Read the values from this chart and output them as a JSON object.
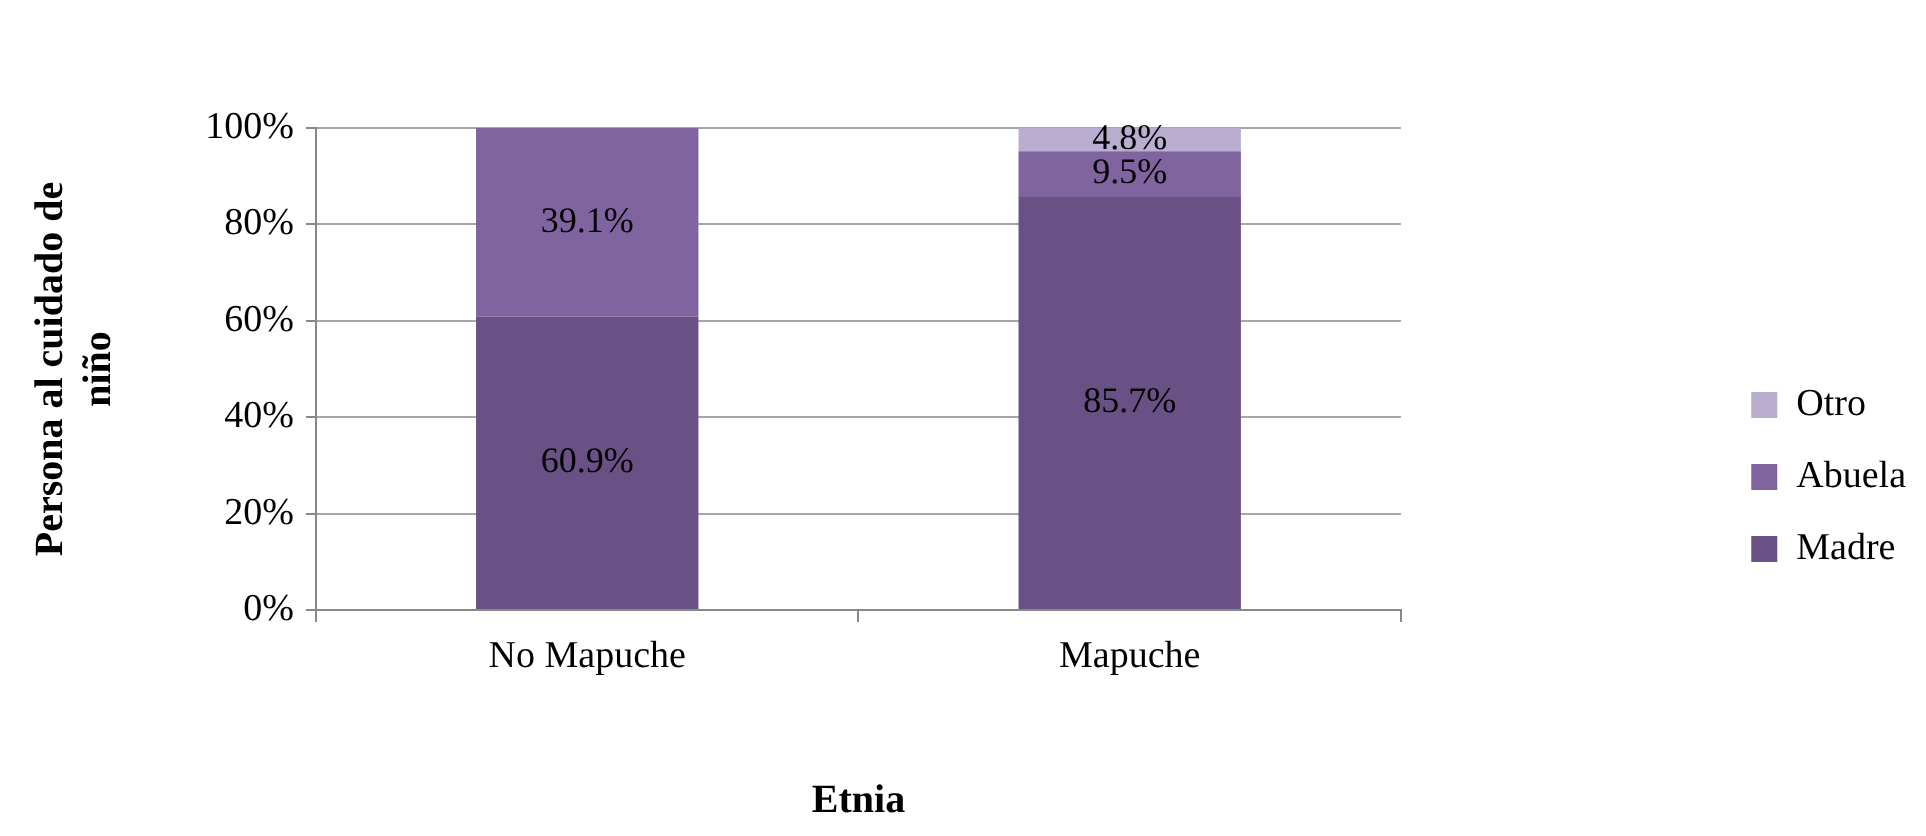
{
  "chart_data": {
    "type": "bar",
    "stacked": true,
    "categories": [
      "No Mapuche",
      "Mapuche"
    ],
    "series": [
      {
        "name": "Madre",
        "color": "#695185",
        "values": [
          60.9,
          85.7
        ],
        "value_labels": [
          "60.9%",
          "85.7%"
        ]
      },
      {
        "name": "Abuela",
        "color": "#8064a0",
        "values": [
          39.1,
          9.5
        ],
        "value_labels": [
          "39.1%",
          "9.5%"
        ]
      },
      {
        "name": "Otro",
        "color": "#b9aed0",
        "values": [
          null,
          4.8
        ],
        "value_labels": [
          null,
          "4.8%"
        ]
      }
    ],
    "ylim": [
      0,
      100
    ],
    "yticks": [
      {
        "value": 0,
        "label": "0%"
      },
      {
        "value": 20,
        "label": "20%"
      },
      {
        "value": 40,
        "label": "40%"
      },
      {
        "value": 60,
        "label": "60%"
      },
      {
        "value": 80,
        "label": "80%"
      },
      {
        "value": 100,
        "label": "100%"
      }
    ],
    "ylabel": "Persona al cuidado de niño",
    "xlabel": "Etnia",
    "grid": "y",
    "legend": "right"
  }
}
